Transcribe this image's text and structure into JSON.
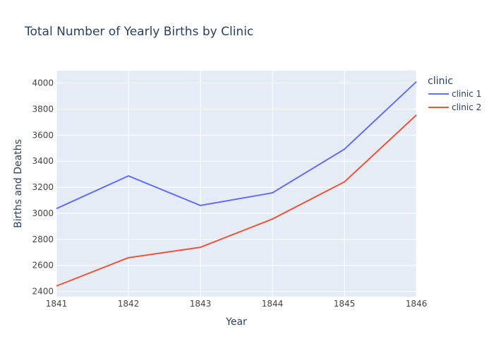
{
  "chart_data": {
    "type": "line",
    "title": "Total Number of Yearly Births by Clinic",
    "xlabel": "Year",
    "ylabel": "Births and Deaths",
    "x": [
      1841,
      1842,
      1843,
      1844,
      1845,
      1846
    ],
    "x_ticks": [
      "1841",
      "1842",
      "1843",
      "1844",
      "1845",
      "1846"
    ],
    "xlim": [
      1841,
      1846
    ],
    "y_ticks": [
      2400,
      2600,
      2800,
      3000,
      3200,
      3400,
      3600,
      3800,
      4000
    ],
    "ylim": [
      2360,
      4095
    ],
    "grid": true,
    "legend": {
      "title": "clinic",
      "position": "right"
    },
    "series": [
      {
        "name": "clinic 1",
        "color": "#636efa",
        "values": [
          3036,
          3287,
          3060,
          3157,
          3492,
          4010
        ]
      },
      {
        "name": "clinic 2",
        "color": "#ef553b",
        "values": [
          2442,
          2659,
          2739,
          2956,
          3241,
          3754
        ]
      }
    ],
    "colors": {
      "plot_bg": "#e5ecf6",
      "grid": "#ffffff",
      "text": "#2a3f5f",
      "tick_text": "#444444"
    }
  }
}
